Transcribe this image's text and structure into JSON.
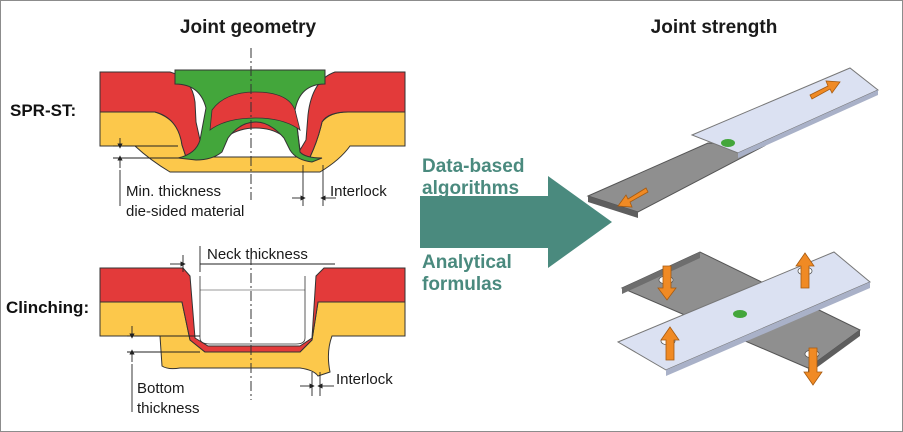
{
  "headings": {
    "left": "Joint geometry",
    "right": "Joint strength"
  },
  "rows": {
    "spr": "SPR-ST:",
    "clinching": "Clinching:"
  },
  "labels": {
    "min_thickness_1": "Min. thickness",
    "min_thickness_2": "die-sided material",
    "interlock_spr": "Interlock",
    "neck_thickness": "Neck thickness",
    "bottom_1": "Bottom",
    "bottom_2": "thickness",
    "interlock_clinch": "Interlock"
  },
  "methods": {
    "line1": "Data-based",
    "line2": "algorithms",
    "line3": "Analytical",
    "line4": "formulas"
  },
  "colors": {
    "red": "#e33a3a",
    "yellow": "#fcc84b",
    "green": "#43a63b",
    "arrow": "#4a8a7e",
    "plate_light": "#dbe1f2",
    "plate_grey": "#8f8f8f",
    "force": "#f08a24"
  }
}
